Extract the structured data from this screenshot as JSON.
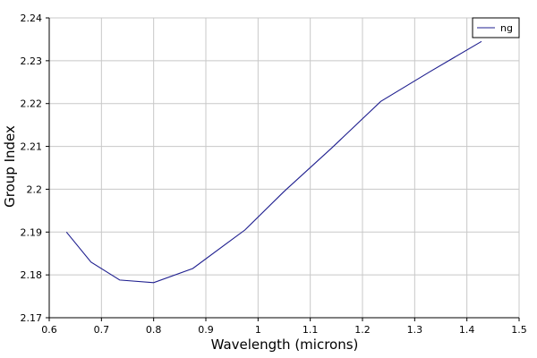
{
  "chart_data": {
    "type": "line",
    "title": "",
    "xlabel": "Wavelength (microns)",
    "ylabel": "Group Index",
    "xlim": [
      0.6,
      1.5
    ],
    "ylim": [
      2.17,
      2.24
    ],
    "xticks": [
      "0.6",
      "0.7",
      "0.8",
      "0.9",
      "1",
      "1.1",
      "1.2",
      "1.3",
      "1.4",
      "1.5"
    ],
    "yticks": [
      "2.17",
      "2.18",
      "2.19",
      "2.2",
      "2.21",
      "2.22",
      "2.23",
      "2.24"
    ],
    "grid": true,
    "legend": {
      "position": "top-right"
    },
    "series": [
      {
        "name": "ng",
        "color": "#1f1f8f",
        "x": [
          0.633,
          0.68,
          0.735,
          0.8,
          0.875,
          0.975,
          1.05,
          1.14,
          1.235,
          1.33,
          1.428
        ],
        "y": [
          2.19,
          2.183,
          2.1788,
          2.1782,
          2.1815,
          2.1905,
          2.1995,
          2.2095,
          2.2205,
          2.2275,
          2.2345
        ]
      }
    ]
  }
}
